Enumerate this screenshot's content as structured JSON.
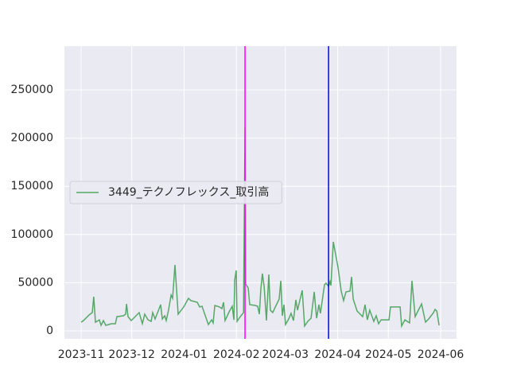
{
  "chart_data": {
    "type": "line",
    "x": [
      0,
      1.4,
      4.7,
      6.6,
      7.5,
      8.5,
      10.8,
      11.8,
      13.2,
      14.6,
      17.9,
      20.3,
      21.2,
      25,
      26.4,
      26.9,
      27.8,
      29.7,
      32,
      34.4,
      36.3,
      37.7,
      39.6,
      41.5,
      42.4,
      43.8,
      46.2,
      47.1,
      48.1,
      49.5,
      50.4,
      51.8,
      53.3,
      54.2,
      55.6,
      57.5,
      60.8,
      63.6,
      65,
      68.8,
      70.2,
      71.6,
      75.4,
      77.3,
      78.2,
      79.2,
      82,
      83.4,
      84.4,
      85.3,
      87.7,
      89.5,
      90.5,
      91,
      91.9,
      92.4,
      94.3,
      96.2,
      97.1,
      97.5,
      99,
      99.9,
      103.2,
      104.6,
      105.6,
      106.5,
      107.4,
      108.4,
      109.8,
      111.2,
      112.1,
      113.5,
      115.5,
      117.3,
      118.3,
      119.2,
      120.2,
      121.1,
      123,
      124.4,
      125.8,
      127.2,
      128.2,
      131,
      132.4,
      134.3,
      136.2,
      138.1,
      139.5,
      140.9,
      141.8,
      144.2,
      145.1,
      146.6,
      147.5,
      148,
      149.4,
      152.2,
      154.1,
      155.5,
      156.9,
      159.3,
      160.2,
      161.2,
      163.5,
      166.8,
      168.2,
      169.6,
      171,
      173.4,
      174.8,
      176.2,
      177.7,
      182.4,
      183.3,
      186.1,
      189,
      189.9,
      191.8,
      194.6,
      196,
      197.9,
      199.3,
      201.7,
      202.6,
      204,
      205.9,
      208.8,
      209.7,
      210.7,
      212.1
    ],
    "series": [
      {
        "name": "3449_テクノフレックス_取引高",
        "color": "#55a868",
        "values": [
          9000,
          10700,
          16500,
          19000,
          35500,
          9000,
          11500,
          5800,
          10700,
          5800,
          7400,
          7400,
          14800,
          15700,
          17300,
          28000,
          14800,
          10700,
          14800,
          19000,
          7400,
          17300,
          11500,
          9900,
          19000,
          12400,
          23100,
          27200,
          12400,
          15700,
          10700,
          21500,
          37100,
          33800,
          68500,
          17300,
          24800,
          33800,
          31400,
          29700,
          24800,
          25600,
          6600,
          11500,
          8300,
          26400,
          24800,
          23100,
          29700,
          10700,
          19800,
          25600,
          11500,
          52800,
          62700,
          9900,
          14800,
          19000,
          211000,
          48700,
          44500,
          27200,
          26400,
          25600,
          17300,
          43700,
          59400,
          46200,
          10700,
          58600,
          21500,
          19000,
          26400,
          33000,
          52000,
          15700,
          27200,
          6600,
          12400,
          18200,
          10700,
          32200,
          21500,
          42100,
          5000,
          9900,
          13200,
          40400,
          13200,
          27200,
          18200,
          47900,
          49500,
          46200,
          51200,
          47000,
          92400,
          66000,
          41300,
          31400,
          40400,
          41300,
          56100,
          33000,
          20600,
          14800,
          27200,
          11500,
          21500,
          9900,
          15700,
          7400,
          11500,
          11500,
          24800,
          24800,
          24800,
          5000,
          11500,
          8300,
          52000,
          14800,
          19800,
          28000,
          20600,
          9100,
          12400,
          19000,
          22300,
          20600,
          5800
        ]
      }
    ],
    "xlim": [
      -9.9,
      222.4
    ],
    "xticks": [
      {
        "value": 0,
        "label": "2023-11"
      },
      {
        "value": 30,
        "label": "2023-12"
      },
      {
        "value": 61,
        "label": "2024-01"
      },
      {
        "value": 92,
        "label": "2024-02"
      },
      {
        "value": 121,
        "label": "2024-03"
      },
      {
        "value": 152,
        "label": "2024-04"
      },
      {
        "value": 182,
        "label": "2024-05"
      },
      {
        "value": 213,
        "label": "2024-06"
      }
    ],
    "ylim": [
      -8250,
      295400
    ],
    "yticks": [
      0,
      50000,
      100000,
      150000,
      200000,
      250000
    ],
    "vlines": [
      {
        "x": 97.1,
        "color": "#ff00ff"
      },
      {
        "x": 146.6,
        "color": "#0000ff"
      }
    ],
    "grid": true,
    "legend": "center left"
  }
}
